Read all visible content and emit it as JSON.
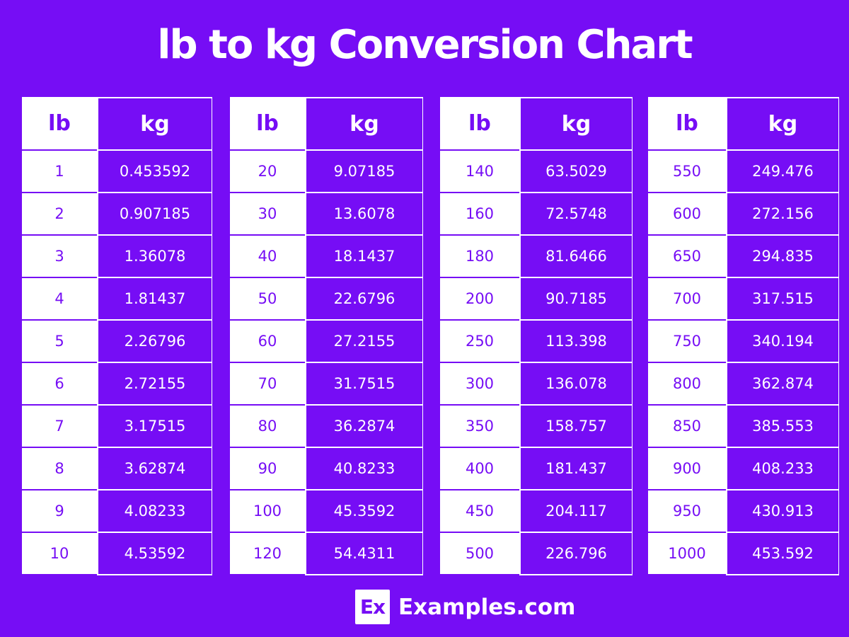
{
  "title": "lb to kg Conversion Chart",
  "colors": {
    "background": "#760df5",
    "text_light": "#ffffff"
  },
  "headers": {
    "lb": "lb",
    "kg": "kg"
  },
  "tables": [
    {
      "rows": [
        [
          "1",
          "0.453592"
        ],
        [
          "2",
          "0.907185"
        ],
        [
          "3",
          "1.36078"
        ],
        [
          "4",
          "1.81437"
        ],
        [
          "5",
          "2.26796"
        ],
        [
          "6",
          "2.72155"
        ],
        [
          "7",
          "3.17515"
        ],
        [
          "8",
          "3.62874"
        ],
        [
          "9",
          "4.08233"
        ],
        [
          "10",
          "4.53592"
        ]
      ]
    },
    {
      "rows": [
        [
          "20",
          "9.07185"
        ],
        [
          "30",
          "13.6078"
        ],
        [
          "40",
          "18.1437"
        ],
        [
          "50",
          "22.6796"
        ],
        [
          "60",
          "27.2155"
        ],
        [
          "70",
          "31.7515"
        ],
        [
          "80",
          "36.2874"
        ],
        [
          "90",
          "40.8233"
        ],
        [
          "100",
          "45.3592"
        ],
        [
          "120",
          "54.4311"
        ]
      ]
    },
    {
      "rows": [
        [
          "140",
          "63.5029"
        ],
        [
          "160",
          "72.5748"
        ],
        [
          "180",
          "81.6466"
        ],
        [
          "200",
          "90.7185"
        ],
        [
          "250",
          "113.398"
        ],
        [
          "300",
          "136.078"
        ],
        [
          "350",
          "158.757"
        ],
        [
          "400",
          "181.437"
        ],
        [
          "450",
          "204.117"
        ],
        [
          "500",
          "226.796"
        ]
      ]
    },
    {
      "rows": [
        [
          "550",
          "249.476"
        ],
        [
          "600",
          "272.156"
        ],
        [
          "650",
          "294.835"
        ],
        [
          "700",
          "317.515"
        ],
        [
          "750",
          "340.194"
        ],
        [
          "800",
          "362.874"
        ],
        [
          "850",
          "385.553"
        ],
        [
          "900",
          "408.233"
        ],
        [
          "950",
          "430.913"
        ],
        [
          "1000",
          "453.592"
        ]
      ]
    }
  ],
  "footer": {
    "logo_mark": "Ex",
    "logo_text": "Examples.com"
  }
}
